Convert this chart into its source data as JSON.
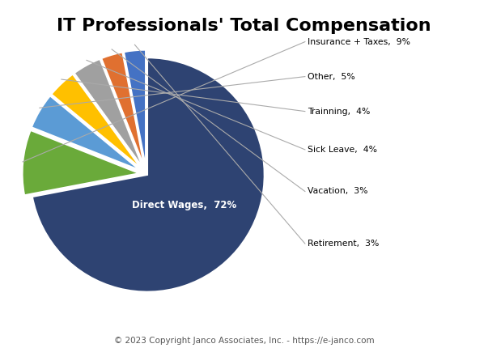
{
  "title": "IT Professionals' Total Compensation",
  "labels": [
    "Direct Wages",
    "Insurance + Taxes",
    "Other",
    "Trainning",
    "Sick Leave",
    "Vacation",
    "Retirement"
  ],
  "values": [
    72,
    9,
    5,
    4,
    4,
    3,
    3
  ],
  "colors": [
    "#2E4372",
    "#6aaa3a",
    "#5b9bd5",
    "#ffc000",
    "#a0a0a0",
    "#e07030",
    "#4472c4"
  ],
  "explode": [
    0.01,
    0.06,
    0.06,
    0.06,
    0.06,
    0.06,
    0.06
  ],
  "startangle": 90,
  "counterclock": false,
  "copyright": "© 2023 Copyright Janco Associates, Inc. - https://e-janco.com",
  "background_color": "#ffffff",
  "label_texts": [
    "Direct Wages,  72%",
    "Insurance + Taxes, 9%",
    "Other,  5%",
    "Trainning,  4%",
    "Sick Leave,  4%",
    "Vacation,  3%",
    "Retirement, 3%"
  ]
}
